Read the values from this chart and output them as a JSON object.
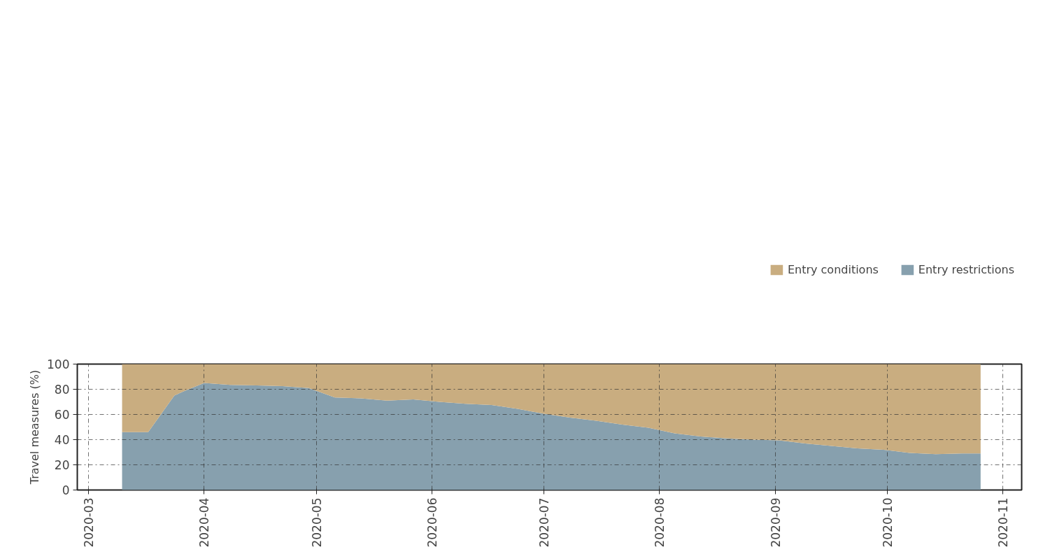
{
  "chart_data": {
    "type": "area",
    "stacked": true,
    "ylabel": "Travel measures (%)",
    "x": [
      "2020-03-10",
      "2020-03-17",
      "2020-03-24",
      "2020-03-27",
      "2020-04-01",
      "2020-04-08",
      "2020-04-15",
      "2020-04-22",
      "2020-04-29",
      "2020-05-06",
      "2020-05-13",
      "2020-05-20",
      "2020-05-27",
      "2020-06-03",
      "2020-06-10",
      "2020-06-17",
      "2020-06-24",
      "2020-07-01",
      "2020-07-08",
      "2020-07-15",
      "2020-07-22",
      "2020-07-29",
      "2020-08-05",
      "2020-08-12",
      "2020-08-19",
      "2020-08-26",
      "2020-09-02",
      "2020-09-09",
      "2020-09-16",
      "2020-09-23",
      "2020-09-30",
      "2020-10-07",
      "2020-10-14",
      "2020-10-21",
      "2020-10-26"
    ],
    "series": [
      {
        "name": "Entry restrictions",
        "color": "#87a0ae",
        "values": [
          46,
          46,
          75,
          79,
          85,
          83.5,
          83,
          82.5,
          81,
          73.5,
          72.8,
          71,
          72,
          70,
          68.5,
          67.5,
          64.5,
          60.5,
          57.5,
          55,
          52,
          49.5,
          45,
          42.5,
          41,
          40,
          39.5,
          37,
          35,
          33,
          32,
          29.5,
          28.5,
          29,
          29
        ]
      },
      {
        "name": "Entry conditions",
        "color": "#c9ad80",
        "values": [
          54,
          54,
          25,
          21,
          15,
          16.5,
          17,
          17.5,
          19,
          26.5,
          27.2,
          29,
          28,
          30,
          31.5,
          32.5,
          35.5,
          39.5,
          42.5,
          45,
          48,
          50.5,
          55,
          57.5,
          59,
          60,
          60.5,
          63,
          65,
          67,
          68,
          70.5,
          71.5,
          71,
          71
        ]
      }
    ],
    "xlim": [
      "2020-02-27",
      "2020-11-06"
    ],
    "xticks": [
      "2020-03",
      "2020-04",
      "2020-05",
      "2020-06",
      "2020-07",
      "2020-08",
      "2020-09",
      "2020-10",
      "2020-11"
    ],
    "ylim": [
      0,
      100
    ],
    "yticks": [
      0,
      20,
      40,
      60,
      80,
      100
    ],
    "grid": true,
    "legend": "top right"
  }
}
